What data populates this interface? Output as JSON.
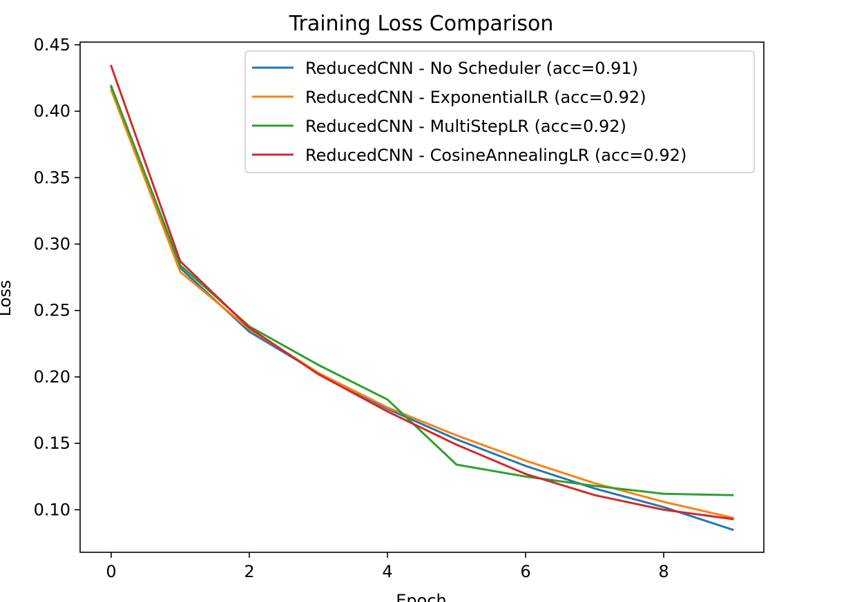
{
  "chart_data": {
    "type": "line",
    "title": "Training Loss Comparison",
    "xlabel": "Epoch",
    "ylabel": "Loss",
    "xlim": [
      -0.45,
      9.45
    ],
    "ylim": [
      0.068,
      0.452
    ],
    "xticks": [
      0,
      2,
      4,
      6,
      8
    ],
    "yticks": [
      0.1,
      0.15,
      0.2,
      0.25,
      0.3,
      0.35,
      0.4,
      0.45
    ],
    "ytick_labels": [
      "0.10",
      "0.15",
      "0.20",
      "0.25",
      "0.30",
      "0.35",
      "0.40",
      "0.45"
    ],
    "grid": false,
    "legend_position": "upper-right",
    "x": [
      0,
      1,
      2,
      3,
      4,
      5,
      6,
      7,
      8,
      9
    ],
    "series": [
      {
        "name": "ReducedCNN - No Scheduler (acc=0.91)",
        "color": "#1f77b4",
        "values": [
          0.418,
          0.282,
          0.234,
          0.203,
          0.176,
          0.153,
          0.133,
          0.116,
          0.102,
          0.085
        ]
      },
      {
        "name": "ReducedCNN - ExponentialLR (acc=0.92)",
        "color": "#ff7f0e",
        "values": [
          0.416,
          0.279,
          0.236,
          0.203,
          0.177,
          0.156,
          0.137,
          0.12,
          0.106,
          0.094
        ]
      },
      {
        "name": "ReducedCNN - MultiStepLR (acc=0.92)",
        "color": "#2ca02c",
        "values": [
          0.419,
          0.284,
          0.238,
          0.209,
          0.183,
          0.134,
          0.125,
          0.118,
          0.112,
          0.111
        ]
      },
      {
        "name": "ReducedCNN - CosineAnnealingLR (acc=0.92)",
        "color": "#d62728",
        "values": [
          0.434,
          0.287,
          0.237,
          0.202,
          0.174,
          0.149,
          0.127,
          0.111,
          0.1,
          0.093
        ]
      }
    ]
  }
}
